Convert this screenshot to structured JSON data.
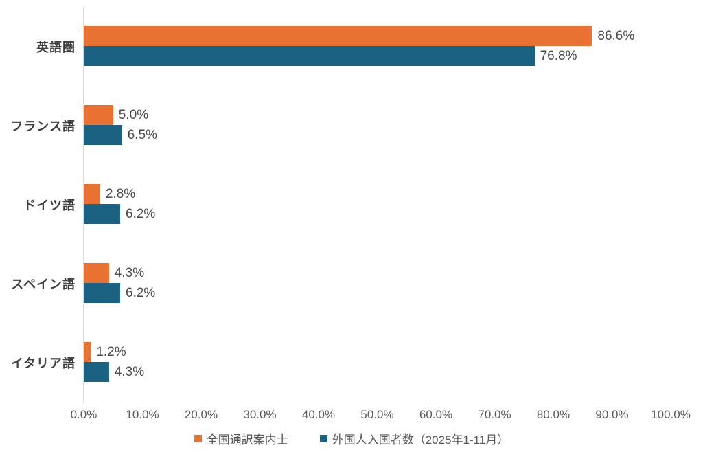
{
  "chart_data": {
    "type": "bar",
    "orientation": "horizontal",
    "title": "",
    "xlabel": "",
    "ylabel": "",
    "xlim": [
      0,
      100
    ],
    "grid": false,
    "legend_position": "bottom",
    "categories": [
      "英語圏",
      "フランス語",
      "ドイツ語",
      "スペイン語",
      "イタリア語"
    ],
    "x_ticks": [
      "0.0%",
      "10.0%",
      "20.0%",
      "30.0%",
      "40.0%",
      "50.0%",
      "60.0%",
      "70.0%",
      "80.0%",
      "90.0%",
      "100.0%"
    ],
    "series": [
      {
        "name": "全国通訳案内士",
        "color": "#e97132",
        "values": [
          86.6,
          5.0,
          2.8,
          4.3,
          1.2
        ],
        "labels": [
          "86.6%",
          "5.0%",
          "2.8%",
          "4.3%",
          "1.2%"
        ]
      },
      {
        "name": "外国人入国者数（2025年1-11月）",
        "color": "#1a6182",
        "values": [
          76.8,
          6.5,
          6.2,
          6.2,
          4.3
        ],
        "labels": [
          "76.8%",
          "6.5%",
          "6.2%",
          "6.2%",
          "4.3%"
        ]
      }
    ]
  },
  "layout_colors": {
    "axis_line": "#d9d9d9",
    "tick_text": "#595959",
    "category_text": "#3f3f3f",
    "value_text": "#4a4a4a"
  }
}
